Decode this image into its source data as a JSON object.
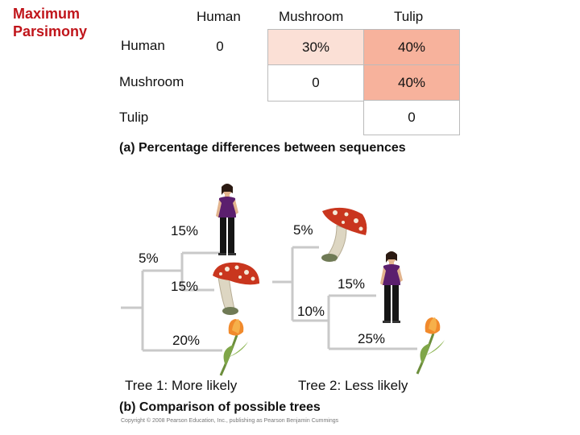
{
  "slide": {
    "title": "Maximum\nParsimony"
  },
  "matrix": {
    "column_headers": [
      "Human",
      "Mushroom",
      "Tulip"
    ],
    "row_headers": [
      "Human",
      "Mushroom",
      "Tulip"
    ],
    "rows": [
      [
        "0",
        "30%",
        "40%"
      ],
      [
        "",
        "0",
        "40%"
      ],
      [
        "",
        "",
        "0"
      ]
    ],
    "colors": {
      "light": "#fbe0d6",
      "medium": "#f7b29c",
      "border": "#bbbbbb"
    },
    "caption": "(a) Percentage differences between sequences"
  },
  "tree1": {
    "label": "Tree 1: More likely",
    "branch_labels": {
      "outer": "5%",
      "human": "15%",
      "mushroom": "15%",
      "tulip": "20%"
    }
  },
  "tree2": {
    "label": "Tree 2: Less likely",
    "branch_labels": {
      "mushroom": "5%",
      "human": "15%",
      "inner": "10%",
      "tulip": "25%"
    }
  },
  "caption_b": "(b) Comparison of possible trees",
  "copyright": "Copyright © 2008 Pearson Education, Inc., publishing as Pearson Benjamin Cummings",
  "branch_color": "#c9c9c9"
}
